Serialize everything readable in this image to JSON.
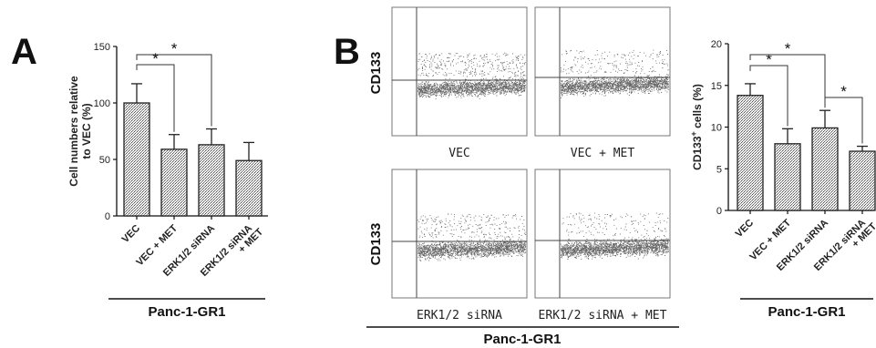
{
  "panels": {
    "a_letter": "A",
    "b_letter": "B"
  },
  "flow": {
    "ylabel": "CD133",
    "plots": [
      {
        "label": "VEC"
      },
      {
        "label": "VEC + MET"
      },
      {
        "label": "ERK1/2 siRNA"
      },
      {
        "label": "ERK1/2 siRNA + MET"
      }
    ],
    "group_label": "Panc-1-GR1"
  },
  "chart_data": [
    {
      "type": "bar",
      "ylabel": "Cell numbers relative to VEC (%)",
      "ylabel_lines": [
        "Cell numbers relative",
        "to VEC (%)"
      ],
      "categories": [
        "VEC",
        "VEC + MET",
        "ERK1/2 siRNA",
        "ERK1/2 siRNA + MET"
      ],
      "category_lines": [
        [
          "VEC"
        ],
        [
          "VEC + MET"
        ],
        [
          "ERK1/2 siRNA"
        ],
        [
          "ERK1/2 siRNA",
          "+ MET"
        ]
      ],
      "values": [
        100,
        59,
        63,
        49
      ],
      "errors": [
        17,
        13,
        14,
        16
      ],
      "ylim": [
        0,
        150
      ],
      "yticks": [
        0,
        50,
        100,
        150
      ],
      "group_label": "Panc-1-GR1",
      "significance": [
        {
          "from": 0,
          "to": 1,
          "label": "*"
        },
        {
          "from": 0,
          "to": 2,
          "label": "*"
        }
      ]
    },
    {
      "type": "bar",
      "ylabel": "CD133+ cells (%)",
      "ylabel_parts": [
        "CD133",
        "+",
        " cells (%)"
      ],
      "categories": [
        "VEC",
        "VEC + MET",
        "ERK1/2 siRNA",
        "ERK1/2 siRNA + MET"
      ],
      "category_lines": [
        [
          "VEC"
        ],
        [
          "VEC + MET"
        ],
        [
          "ERK1/2 siRNA"
        ],
        [
          "ERK1/2 siRNA",
          "+ MET"
        ]
      ],
      "values": [
        13.8,
        8.0,
        9.9,
        7.1
      ],
      "errors": [
        1.4,
        1.8,
        2.1,
        0.6
      ],
      "ylim": [
        0,
        20
      ],
      "yticks": [
        0,
        5,
        10,
        15,
        20
      ],
      "group_label": "Panc-1-GR1",
      "significance": [
        {
          "from": 0,
          "to": 1,
          "label": "*"
        },
        {
          "from": 0,
          "to": 2,
          "label": "*"
        },
        {
          "from": 2,
          "to": 3,
          "label": "*"
        }
      ]
    }
  ]
}
